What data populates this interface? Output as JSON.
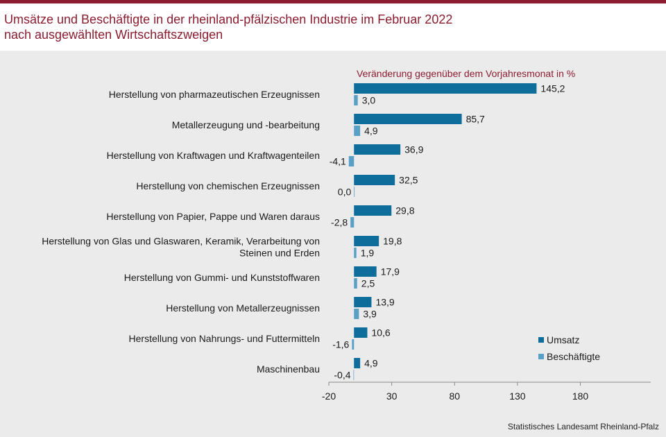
{
  "header": {
    "title_line1": "Umsätze und Beschäftigte in der rheinland-pfälzischen Industrie im Februar 2022",
    "title_line2": "nach ausgewählten Wirtschaftszweigen"
  },
  "source": "Statistisches Landesamt Rheinland-Pfalz",
  "colors": {
    "umsatz": "#0f6d9b",
    "beschaeftigte": "#5aa0c6",
    "accent": "#8c1c2f"
  },
  "chart_data": {
    "type": "bar",
    "orientation": "horizontal",
    "subtitle": "Veränderung gegenüber dem Vorjahresmonat in %",
    "categories": [
      [
        "Herstellung von pharmazeutischen Erzeugnissen"
      ],
      [
        "Metallerzeugung und -bearbeitung"
      ],
      [
        "Herstellung von Kraftwagen und Kraftwagenteilen"
      ],
      [
        "Herstellung von chemischen Erzeugnissen"
      ],
      [
        "Herstellung von Papier, Pappe und Waren daraus"
      ],
      [
        "Herstellung von Glas und Glaswaren, Keramik, Verarbeitung von",
        "Steinen und Erden"
      ],
      [
        "Herstellung von Gummi- und Kunststoffwaren"
      ],
      [
        "Herstellung von Metallerzeugnissen"
      ],
      [
        "Herstellung von Nahrungs- und Futtermitteln"
      ],
      [
        "Maschinenbau"
      ]
    ],
    "series": [
      {
        "name": "Umsatz",
        "values": [
          145.2,
          85.7,
          36.9,
          32.5,
          29.8,
          19.8,
          17.9,
          13.9,
          10.6,
          4.9
        ],
        "labels": [
          "145,2",
          "85,7",
          "36,9",
          "32,5",
          "29,8",
          "19,8",
          "17,9",
          "13,9",
          "10,6",
          "4,9"
        ]
      },
      {
        "name": "Beschäftigte",
        "values": [
          3.0,
          4.9,
          -4.1,
          0.0,
          -2.8,
          1.9,
          2.5,
          3.9,
          -1.6,
          -0.4
        ],
        "labels": [
          "3,0",
          "4,9",
          "-4,1",
          "0,0",
          "-2,8",
          "1,9",
          "2,5",
          "3,9",
          "-1,6",
          "-0,4"
        ]
      }
    ],
    "xticks": [
      -20,
      30,
      80,
      130,
      180
    ],
    "xtick_labels": [
      "-20",
      "30",
      "80",
      "130",
      "180"
    ],
    "xlim": [
      -20,
      236
    ],
    "grid": false,
    "legend_position": "bottom-right"
  }
}
